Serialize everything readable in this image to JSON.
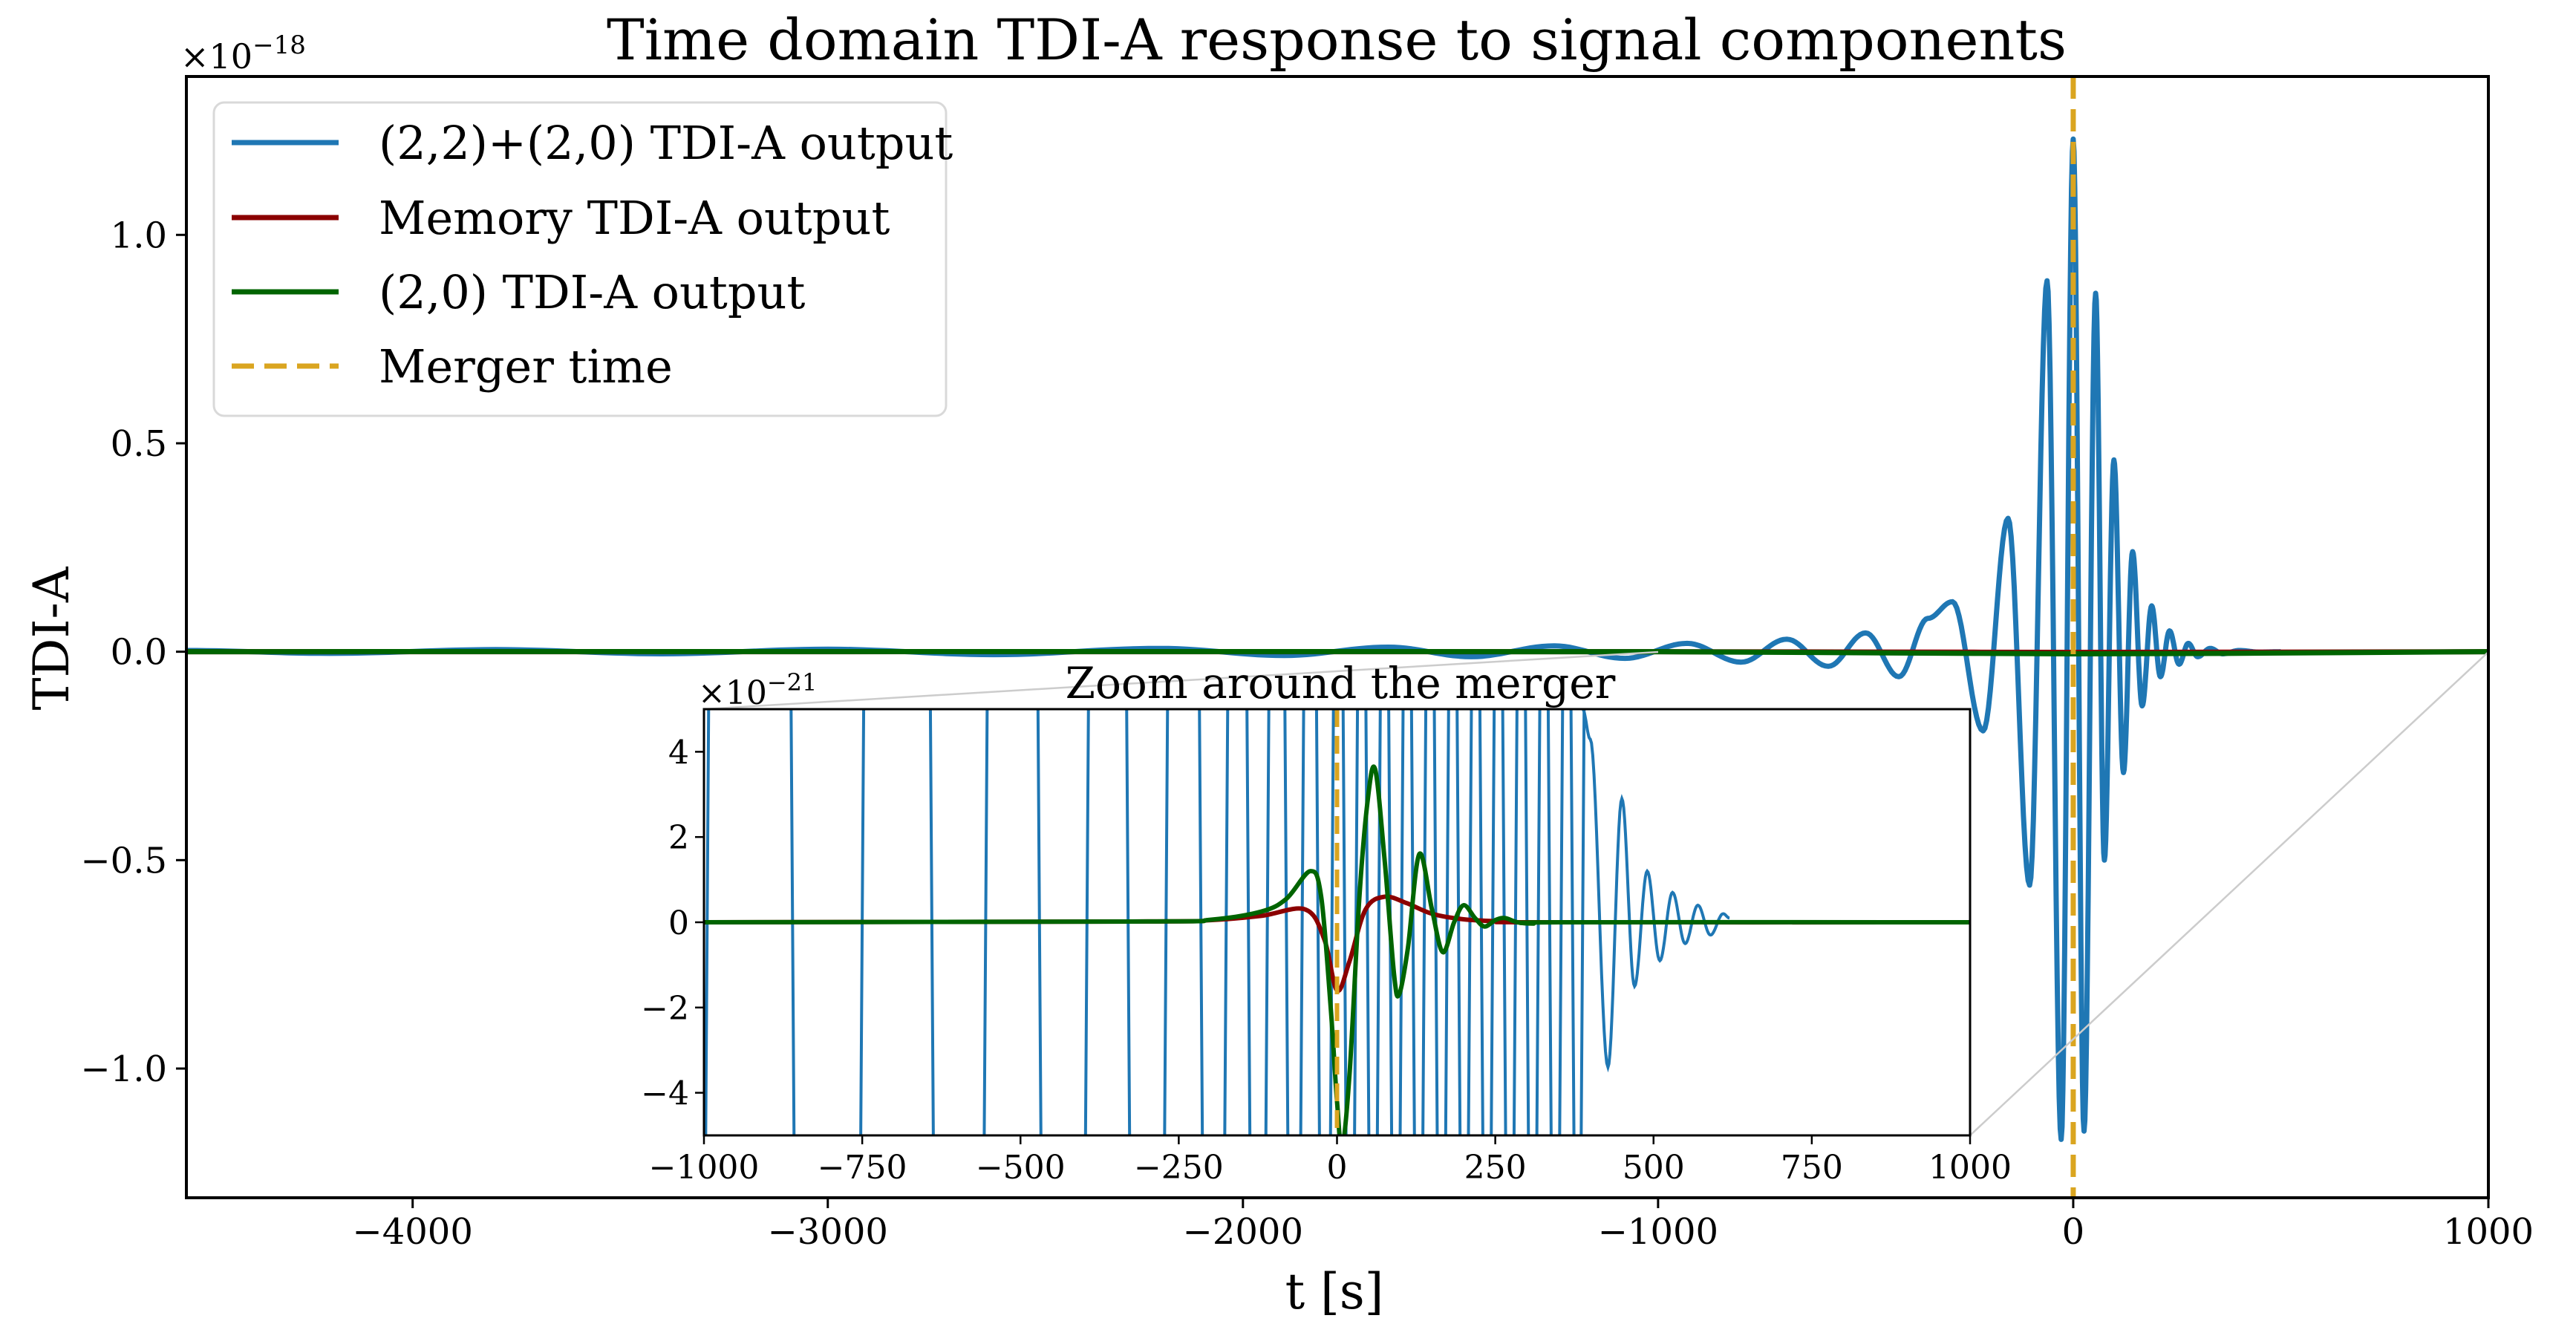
{
  "figure": {
    "title": "Time domain TDI-A response to signal components",
    "xlabel": "t [s]",
    "ylabel": "TDI-A",
    "offset_text_main": "×10",
    "offset_exp_main": "−18",
    "offset_text_inset": "×10",
    "offset_exp_inset": "−21",
    "inset_title": "Zoom around the merger"
  },
  "legend": {
    "items": [
      {
        "label": "(2,2)+(2,0) TDI-A output",
        "color": "#1f77b4",
        "style": "solid"
      },
      {
        "label": "Memory TDI-A output",
        "color": "#8b0000",
        "style": "solid"
      },
      {
        "label": "(2,0) TDI-A output",
        "color": "#006400",
        "style": "solid"
      },
      {
        "label": "Merger time",
        "color": "#daa520",
        "style": "dashed"
      }
    ]
  },
  "colors": {
    "full": "#1f77b4",
    "memory": "#8b0000",
    "m20": "#006400",
    "merger": "#daa520",
    "connector": "#cccccc"
  },
  "chart_data": [
    {
      "type": "line",
      "title": "Time domain TDI-A response to signal components",
      "xlabel": "t [s]",
      "ylabel": "TDI-A",
      "y_scale_note": "×10^-18",
      "xlim": [
        -4545,
        1000
      ],
      "ylim": [
        -1.31,
        1.38
      ],
      "xticks": [
        -4000,
        -3000,
        -2000,
        -1000,
        0,
        1000
      ],
      "xtick_labels": [
        "−4000",
        "−3000",
        "−2000",
        "−1000",
        "0",
        "1000"
      ],
      "yticks": [
        -1.0,
        -0.5,
        0.0,
        0.5,
        1.0
      ],
      "ytick_labels": [
        "−1.0",
        "−0.5",
        "0.0",
        "0.5",
        "1.0"
      ],
      "grid": false,
      "legend_position": "upper left",
      "vline": {
        "x": 0,
        "label": "Merger time"
      },
      "series": [
        {
          "name": "(2,2)+(2,0) TDI-A output",
          "kind": "chirp_peaks",
          "x": [
            -4545,
            -4200,
            -3800,
            -3400,
            -3000,
            -2600,
            -2200,
            -1900,
            -1650,
            -1450,
            -1250,
            -1080,
            -930,
            -800,
            -690,
            -590,
            -500,
            -420,
            -350,
            -291,
            -217,
            -157,
            -105,
            -63,
            -29,
            0,
            26,
            54,
            75,
            98,
            121,
            143,
            166,
            189,
            210,
            232,
            255,
            277,
            300,
            330,
            360,
            400,
            450,
            500
          ],
          "values": [
            0.003,
            -0.004,
            0.005,
            -0.005,
            0.006,
            -0.007,
            0.008,
            -0.009,
            0.011,
            -0.012,
            0.014,
            -0.016,
            0.02,
            -0.025,
            0.03,
            -0.035,
            0.045,
            -0.06,
            0.08,
            0.12,
            -0.19,
            0.32,
            -0.56,
            0.89,
            -1.17,
            1.23,
            -1.15,
            0.86,
            -0.5,
            0.46,
            -0.29,
            0.24,
            -0.13,
            0.11,
            -0.06,
            0.05,
            -0.03,
            0.02,
            -0.012,
            0.008,
            -0.005,
            0.003,
            -0.001,
            0.0
          ]
        },
        {
          "name": "Memory TDI-A output",
          "x": [
            -4545,
            -1000,
            0,
            1000
          ],
          "values": [
            0,
            0,
            -0.0016,
            0
          ]
        },
        {
          "name": "(2,0) TDI-A output",
          "x": [
            -4545,
            -1000,
            0,
            1000
          ],
          "values": [
            0,
            0,
            -0.005,
            0
          ]
        }
      ]
    },
    {
      "type": "line",
      "title": "Zoom around the merger",
      "y_scale_note": "×10^-21",
      "xlim": [
        -1000,
        1000
      ],
      "ylim": [
        -5,
        5
      ],
      "xticks": [
        -1000,
        -750,
        -500,
        -250,
        0,
        250,
        500,
        750,
        1000
      ],
      "xtick_labels": [
        "−1000",
        "−750",
        "−500",
        "−250",
        "0",
        "250",
        "500",
        "750",
        "1000"
      ],
      "yticks": [
        -4,
        -2,
        0,
        2,
        4
      ],
      "ytick_labels": [
        "−4",
        "−2",
        "0",
        "2",
        "4"
      ],
      "vline": {
        "x": 0
      },
      "series": [
        {
          "name": "(2,2)+(2,0) TDI-A output",
          "note": "mostly off-scale oscillations before ~390 s; visible ringdown after",
          "crossings_x": [
            -995,
            -860,
            -750,
            -640,
            -555,
            -470,
            -395,
            -330,
            -270,
            -215,
            -175,
            -140,
            -110,
            -80,
            -55,
            -30,
            -8,
            12,
            30,
            48,
            66,
            84,
            102,
            120,
            138,
            156,
            174,
            192,
            210,
            228,
            246,
            264,
            282,
            300,
            318,
            336,
            354,
            372,
            388
          ],
          "ringdown_x": [
            388,
            400,
            428,
            450,
            470,
            490,
            510,
            530,
            550,
            570,
            590,
            610,
            620
          ],
          "ringdown_values": [
            5,
            4.3,
            -3.4,
            2.9,
            -1.5,
            1.2,
            -0.9,
            0.7,
            -0.5,
            0.4,
            -0.3,
            0.2,
            0.1
          ]
        },
        {
          "name": "Memory TDI-A output",
          "x": [
            -1000,
            -300,
            -200,
            -120,
            -50,
            -20,
            0,
            20,
            45,
            75,
            110,
            150,
            200,
            260,
            320,
            1000
          ],
          "values": [
            0,
            0.02,
            0.05,
            0.15,
            0.3,
            -0.4,
            -1.6,
            -0.9,
            0.3,
            0.6,
            0.45,
            0.2,
            0.07,
            0.02,
            0,
            0
          ]
        },
        {
          "name": "(2,0) TDI-A output",
          "x": [
            -1000,
            -300,
            -200,
            -120,
            -80,
            -42,
            -25,
            -10,
            0,
            8,
            20,
            35,
            48,
            60,
            75,
            90,
            98,
            112,
            130,
            150,
            167,
            185,
            200,
            218,
            233,
            250,
            265,
            285,
            310,
            350,
            1000
          ],
          "values": [
            0,
            0.02,
            0.06,
            0.25,
            0.55,
            1.2,
            0.6,
            -2.0,
            -4.2,
            -5.3,
            -3.5,
            0.5,
            2.8,
            3.6,
            1.5,
            -1.2,
            -1.7,
            -0.6,
            1.6,
            0.3,
            -0.7,
            0.0,
            0.4,
            0.1,
            -0.1,
            0.05,
            0.1,
            0.0,
            -0.03,
            0,
            0
          ]
        }
      ]
    }
  ]
}
